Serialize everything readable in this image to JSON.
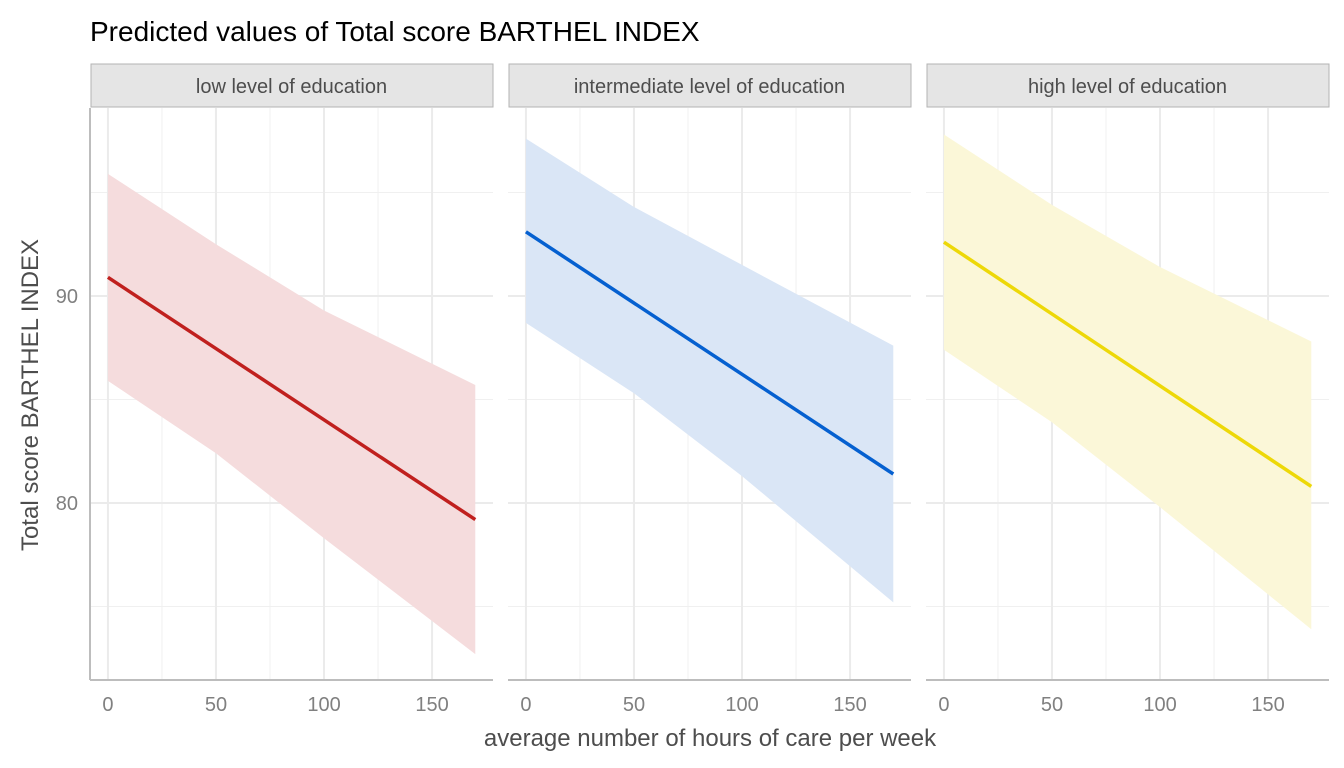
{
  "chart_data": {
    "type": "line",
    "title": "Predicted values of Total score BARTHEL INDEX",
    "xlabel": "average number of hours of care per week",
    "ylabel": "Total score BARTHEL INDEX",
    "xlim": [
      -8.3,
      178.2
    ],
    "ylim": [
      71.45,
      99.08
    ],
    "xticks": [
      0,
      50,
      100,
      150
    ],
    "yticks": [
      80,
      90
    ],
    "yminor": [
      75,
      85,
      95
    ],
    "xminor": [
      25,
      75,
      125
    ],
    "grid": true,
    "panels": [
      {
        "label": "low level of education",
        "color": "#C0201E",
        "fill": "#F5DCDD",
        "x": [
          0,
          170
        ],
        "y": [
          90.9,
          79.2
        ],
        "ci_x": [
          0,
          50,
          100,
          170
        ],
        "ci_upper": [
          95.9,
          92.5,
          89.3,
          85.7
        ],
        "ci_lower": [
          85.9,
          82.4,
          78.3,
          72.7
        ]
      },
      {
        "label": "intermediate level of education",
        "color": "#0560D0",
        "fill": "#DAE6F6",
        "x": [
          0,
          170
        ],
        "y": [
          93.1,
          81.4
        ],
        "ci_x": [
          0,
          50,
          100,
          170
        ],
        "ci_upper": [
          97.6,
          94.3,
          91.5,
          87.6
        ],
        "ci_lower": [
          88.7,
          85.3,
          81.3,
          75.2
        ]
      },
      {
        "label": "high level of education",
        "color": "#EDD808",
        "fill": "#FBF7D8",
        "x": [
          0,
          170
        ],
        "y": [
          92.6,
          80.8
        ],
        "ci_x": [
          0,
          50,
          100,
          170
        ],
        "ci_upper": [
          97.8,
          94.4,
          91.4,
          87.8
        ],
        "ci_lower": [
          87.4,
          83.9,
          79.8,
          73.9
        ]
      }
    ]
  }
}
